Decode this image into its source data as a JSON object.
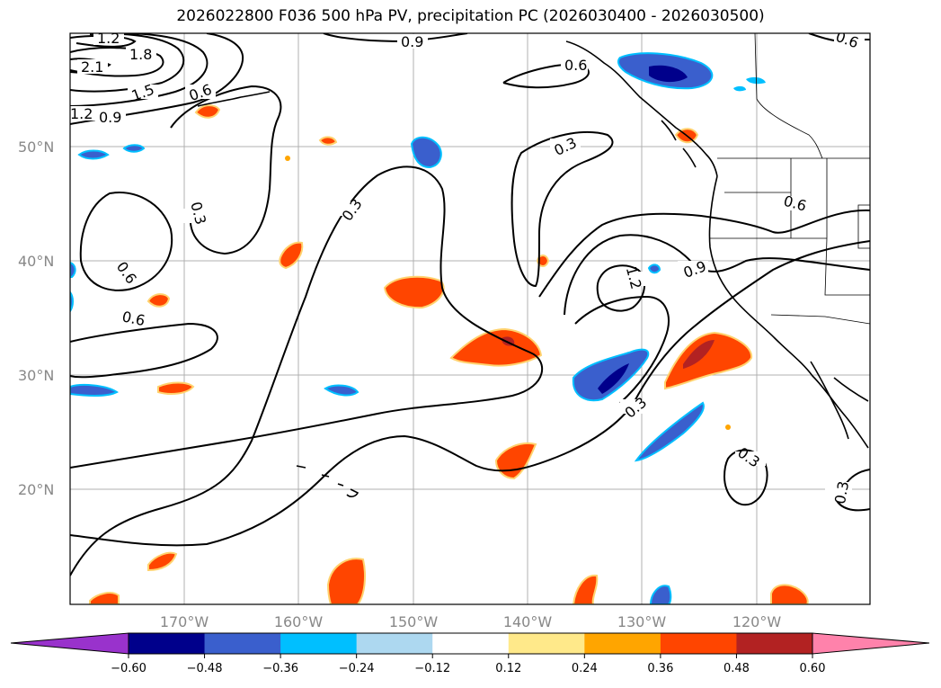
{
  "title": "2026022800 F036 500 hPa PV, precipitation PC (2026030400 - 2026030500)",
  "axes": {
    "lon_labels": [
      "170°W",
      "160°W",
      "150°W",
      "140°W",
      "130°W",
      "120°W"
    ],
    "lat_labels": [
      "50°N",
      "40°N",
      "30°N",
      "20°N"
    ]
  },
  "colorbar": {
    "ticks": [
      "−0.60",
      "−0.48",
      "−0.36",
      "−0.24",
      "−0.12",
      "0.12",
      "0.24",
      "0.36",
      "0.48",
      "0.60"
    ],
    "colors": [
      "#9932cc",
      "#00008b",
      "#3a5fcd",
      "#00bfff",
      "#add8f0",
      "#ffffff",
      "#ffe98a",
      "#ffa500",
      "#ff4500",
      "#b22222",
      "#ff82ab"
    ]
  },
  "contour_labels": [
    "1.2",
    "1.8",
    "2.1",
    "1.5",
    "1.2",
    "0.9",
    "0.6",
    "0.9",
    "0.6",
    "0.3",
    "0.6",
    "0.6",
    "0.3",
    "0.3",
    "0.6",
    "0.9",
    "1.2",
    "0.3",
    "0.3",
    "0.3",
    "0.6"
  ]
}
